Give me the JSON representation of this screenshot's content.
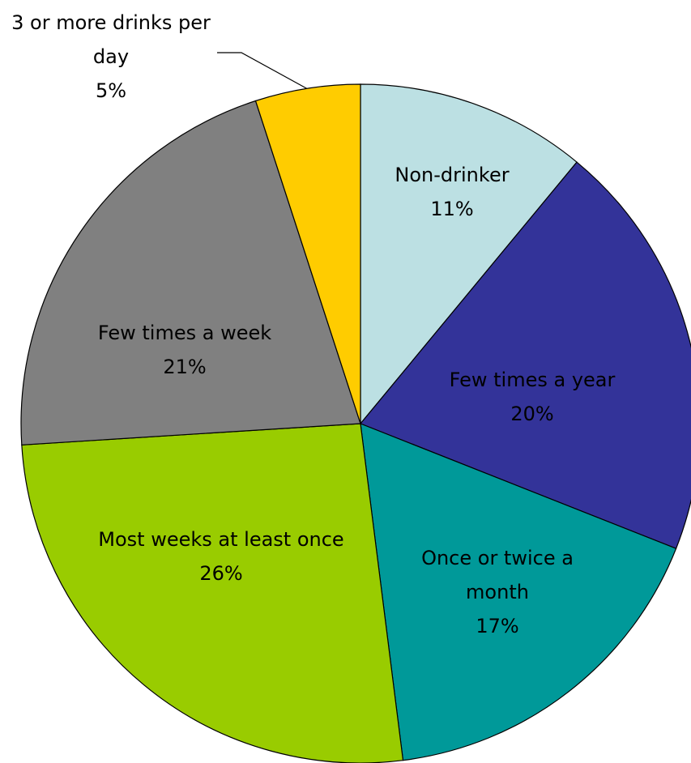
{
  "chart_data": {
    "type": "pie",
    "categories": [
      "Non-drinker",
      "Few times a year",
      "Once or twice a month",
      "Most weeks at least once",
      "Few times a week",
      "3 or more drinks per day"
    ],
    "values": [
      11,
      20,
      17,
      26,
      21,
      5
    ],
    "value_labels": [
      "11%",
      "20%",
      "17%",
      "26%",
      "21%",
      "5%"
    ],
    "colors": [
      "#bce0e3",
      "#333399",
      "#009999",
      "#99cc00",
      "#808080",
      "#ffcc00"
    ]
  }
}
